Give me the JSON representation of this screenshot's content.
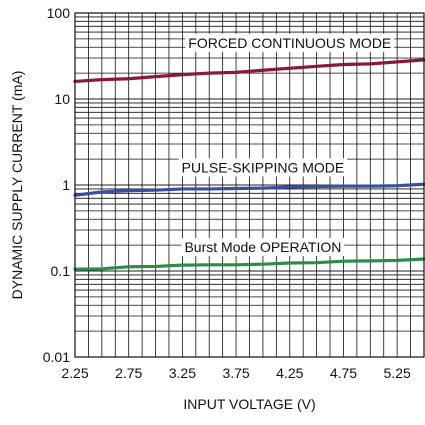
{
  "chart_data": {
    "type": "line",
    "title": "",
    "xlabel": "INPUT VOLTAGE (V)",
    "ylabel": "DYNAMIC SUPPLY CURRENT (mA)",
    "xlim": [
      2.25,
      5.5
    ],
    "ylim": [
      0.01,
      100
    ],
    "yscale": "log",
    "grid": true,
    "x_ticks": [
      2.25,
      2.75,
      3.25,
      3.75,
      4.25,
      4.75,
      5.25
    ],
    "x_tick_labels": [
      "2.25",
      "2.75",
      "3.25",
      "3.75",
      "4.25",
      "4.75",
      "5.25"
    ],
    "y_ticks": [
      0.01,
      0.1,
      1,
      10,
      100
    ],
    "y_tick_labels": [
      "0.01",
      "0.1",
      "1",
      "10",
      "100"
    ],
    "x": [
      2.25,
      2.5,
      2.75,
      3.0,
      3.25,
      3.5,
      3.75,
      4.0,
      4.25,
      4.5,
      4.75,
      5.0,
      5.25,
      5.5
    ],
    "series": [
      {
        "color": "#8b1a3a",
        "values": [
          16,
          16.8,
          17.2,
          18.2,
          19.2,
          20.0,
          20.4,
          21.6,
          22.8,
          24.0,
          25.2,
          25.6,
          27.0,
          28.5
        ]
      },
      {
        "color": "#3a4fa0",
        "values": [
          0.76,
          0.83,
          0.86,
          0.87,
          0.9,
          0.9,
          0.91,
          0.92,
          0.95,
          0.96,
          0.97,
          0.97,
          0.98,
          1.02
        ]
      },
      {
        "color": "#2e8b4a",
        "values": [
          0.105,
          0.106,
          0.112,
          0.113,
          0.117,
          0.118,
          0.118,
          0.12,
          0.124,
          0.125,
          0.13,
          0.131,
          0.133,
          0.138
        ]
      }
    ],
    "annotations": [
      {
        "text": "FORCED CONTINUOUS MODE",
        "x": 4.25,
        "y": 45
      },
      {
        "text": "PULSE-SKIPPING MODE",
        "x": 4.0,
        "y": 1.6
      },
      {
        "text": "Burst Mode OPERATION",
        "x": 4.0,
        "y": 0.19
      }
    ]
  }
}
